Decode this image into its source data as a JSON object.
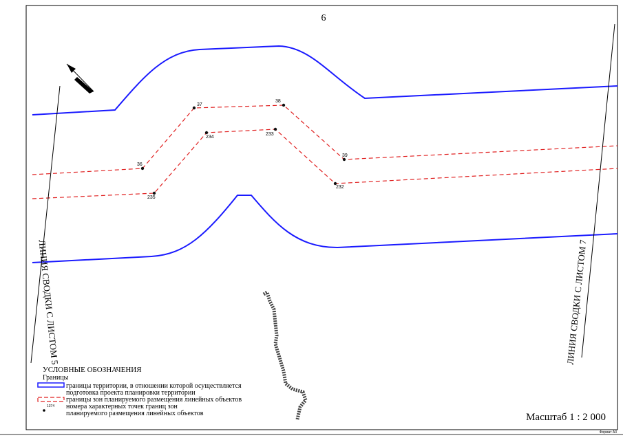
{
  "sheet_number": "6",
  "points": [
    "36",
    "37",
    "38",
    "39",
    "232",
    "233",
    "234",
    "235"
  ],
  "junction_left": "ЛИНИЯ СВОДКИ С ЛИСТОМ 5",
  "junction_right": "ЛИНИЯ СВОДКИ С ЛИСТОМ 7",
  "legend": {
    "title": "УСЛОВНЫЕ ОБОЗНАЧЕНИЯ",
    "subtitle": "Границы",
    "items": [
      {
        "lines": [
          "границы территории, в отношении которой осуществляется",
          "подготовка проекта планировки территории"
        ]
      },
      {
        "lines": [
          "границы зон планируемого размещения линейных объектов"
        ]
      },
      {
        "sample": "1374",
        "lines": [
          "номера характерных точек границ зон",
          "планируемого размещения линейных объектов"
        ]
      }
    ]
  },
  "scale": "Масштаб 1 : 2 000",
  "format": "Формат А3"
}
